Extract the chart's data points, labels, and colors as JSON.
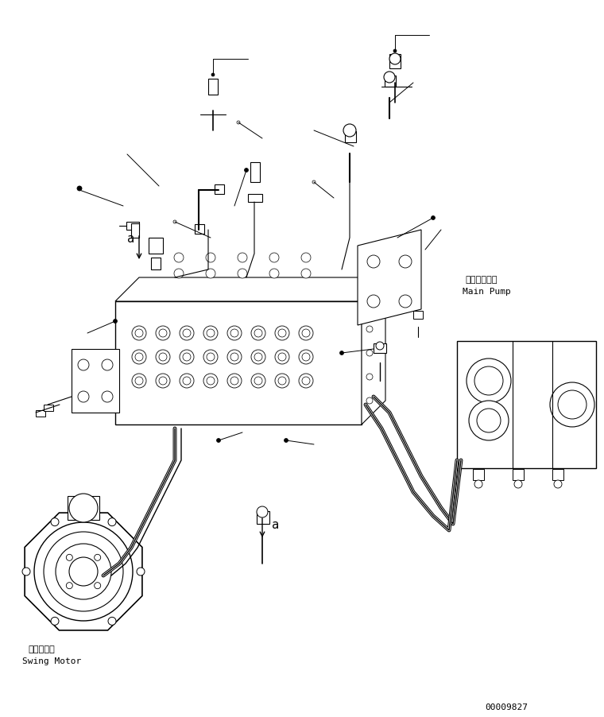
{
  "bg_color": "#ffffff",
  "line_color": "#000000",
  "fig_width": 7.6,
  "fig_height": 9.03,
  "dpi": 100,
  "label_main_pump_jp": "メインポンプ",
  "label_main_pump_en": "Main Pump",
  "label_swing_motor_jp": "旋回モータ",
  "label_swing_motor_en": "Swing Motor",
  "label_a": "a",
  "serial_number": "00009827"
}
